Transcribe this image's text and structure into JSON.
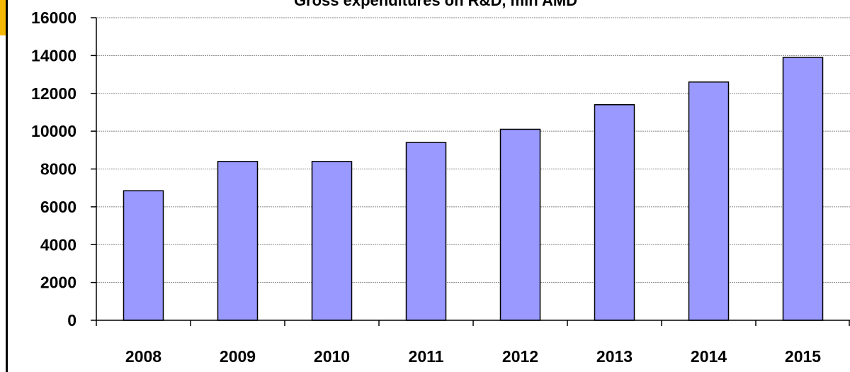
{
  "chart_data": {
    "type": "bar",
    "title": "Gross expenditures on R&D, mln AMD",
    "categories": [
      "2008",
      "2009",
      "2010",
      "2011",
      "2012",
      "2013",
      "2014",
      "2015"
    ],
    "values": [
      6850,
      8400,
      8400,
      9400,
      10100,
      11400,
      12600,
      13900
    ],
    "ylim": [
      0,
      16000
    ],
    "yticks": [
      0,
      2000,
      4000,
      6000,
      8000,
      10000,
      12000,
      14000,
      16000
    ],
    "ytick_labels": [
      "0",
      "2000",
      "4000",
      "6000",
      "8000",
      "10000",
      "12000",
      "14000",
      "16000"
    ],
    "grid": true,
    "legend": "none",
    "colors": {
      "bar_fill": "#9999ff",
      "bar_stroke": "#000000",
      "accent": "#f5b800"
    }
  }
}
